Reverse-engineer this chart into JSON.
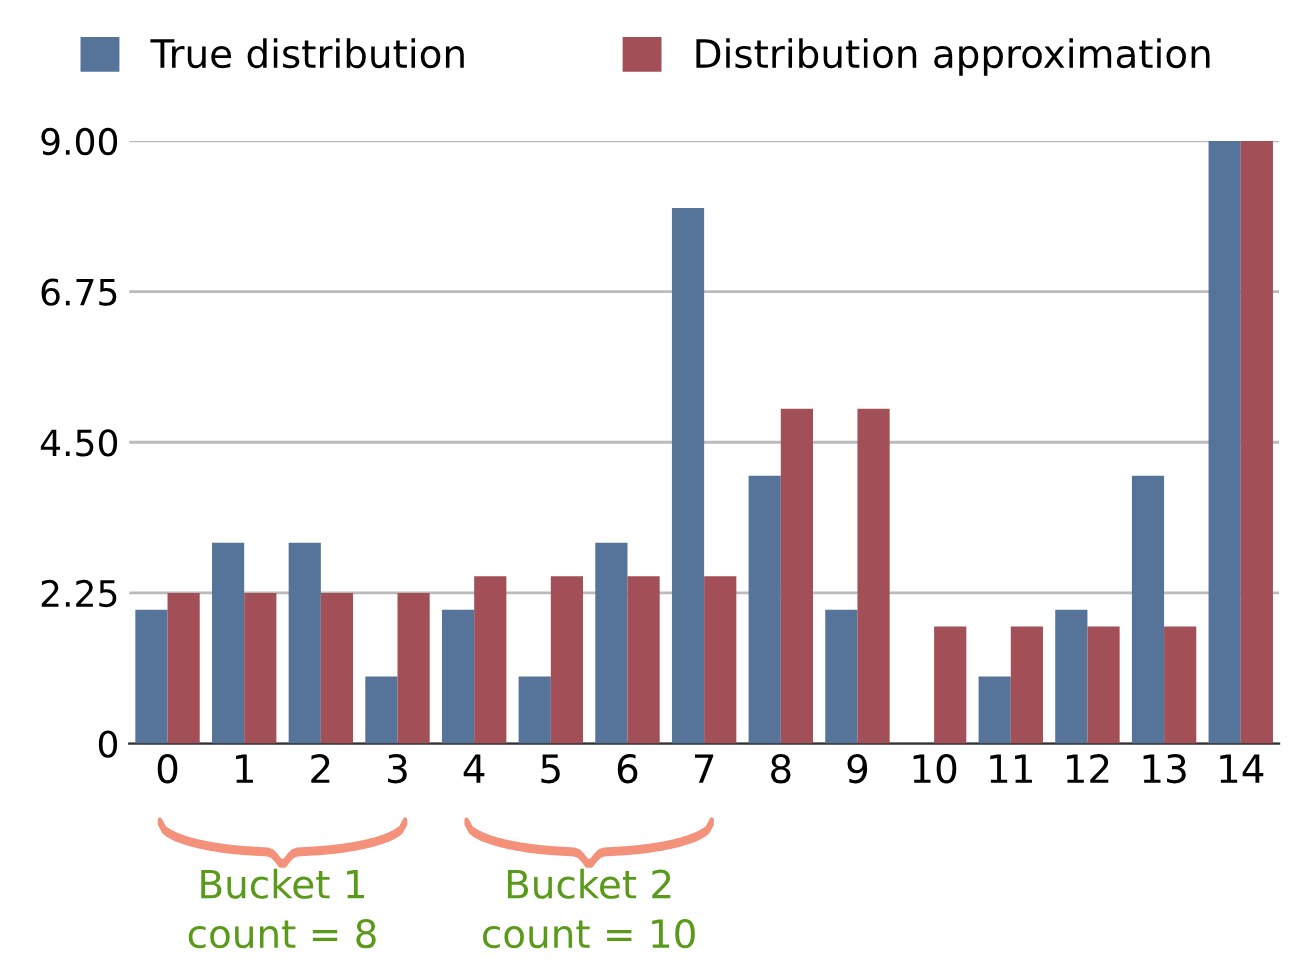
{
  "chart_data": {
    "type": "bar",
    "categories": [
      "0",
      "1",
      "2",
      "3",
      "4",
      "5",
      "6",
      "7",
      "8",
      "9",
      "10",
      "11",
      "12",
      "13",
      "14"
    ],
    "series": [
      {
        "name": "True distribution",
        "color": "#56739a",
        "values": [
          2,
          3,
          3,
          1,
          2,
          1,
          3,
          8,
          4,
          2,
          0,
          1,
          2,
          4,
          9
        ]
      },
      {
        "name": "Distribution approximation",
        "color": "#a24f57",
        "values": [
          2.25,
          2.25,
          2.25,
          2.25,
          2.5,
          2.5,
          2.5,
          2.5,
          5,
          5,
          1.75,
          1.75,
          1.75,
          1.75,
          9
        ]
      }
    ],
    "ylim": [
      0,
      9
    ],
    "yticks": [
      0,
      {
        "value": 2.25,
        "label": "2.25"
      },
      {
        "value": 4.5,
        "label": "4.50"
      },
      {
        "value": 6.75,
        "label": "6.75"
      },
      {
        "value": 9,
        "label": "9.00"
      }
    ],
    "grid": "y",
    "legend": "top",
    "annotations": [
      "Bucket 1\ncount = 8",
      "Bucket 2\ncount = 10"
    ]
  }
}
